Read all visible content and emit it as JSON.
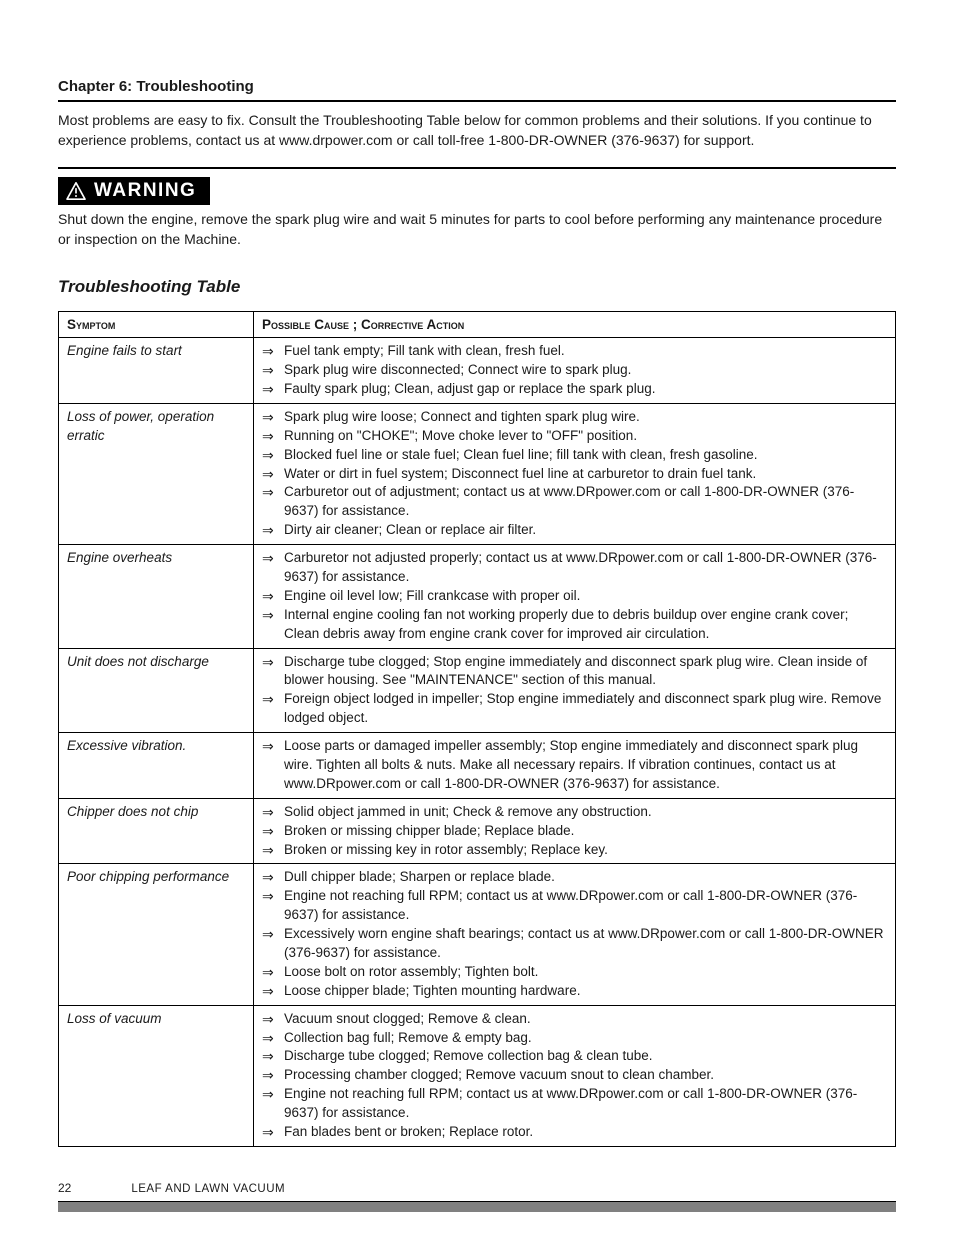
{
  "chapterTitle": "Chapter 6: Troubleshooting",
  "intro": "Most problems are easy to fix. Consult the Troubleshooting Table below for common problems and their solutions. If you continue to experience problems, contact us at www.drpower.com or call toll-free 1-800-DR-OWNER (376-9637) for support.",
  "warningLabel": "WARNING",
  "warningText": "Shut down the engine, remove the spark plug wire and wait 5 minutes for parts to cool before performing any maintenance procedure or inspection on the Machine.",
  "tableTitle": "Troubleshooting Table",
  "headers": {
    "symptom": "Symptom",
    "cause": "Possible Cause ; Corrective Action"
  },
  "rows": [
    {
      "symptom": "Engine fails to start",
      "causes": [
        "Fuel tank empty; Fill tank with clean, fresh fuel.",
        "Spark plug wire disconnected; Connect wire to spark plug.",
        "Faulty spark plug; Clean, adjust gap or replace the spark plug."
      ]
    },
    {
      "symptom": "Loss of power, operation erratic",
      "causes": [
        "Spark plug wire loose; Connect and tighten spark plug wire.",
        "Running on \"CHOKE\"; Move choke lever to \"OFF\" position.",
        "Blocked fuel line or stale fuel; Clean fuel line; fill tank with clean, fresh gasoline.",
        "Water or dirt in fuel system; Disconnect fuel line at carburetor to drain fuel tank.",
        "Carburetor out of adjustment; contact us at www.DRpower.com or call 1-800-DR-OWNER (376-9637) for assistance.",
        "Dirty air cleaner; Clean or replace air filter."
      ]
    },
    {
      "symptom": "Engine overheats",
      "causes": [
        "Carburetor not adjusted properly; contact us at www.DRpower.com or call 1-800-DR-OWNER (376-9637) for assistance.",
        "Engine oil level low; Fill crankcase with proper oil.",
        "Internal engine cooling fan not working properly due to debris buildup over engine crank cover; Clean debris away from engine crank cover for improved air circulation."
      ]
    },
    {
      "symptom": "Unit does not discharge",
      "causes": [
        "Discharge tube clogged; Stop engine immediately and disconnect spark plug wire.  Clean inside of blower housing.  See \"MAINTENANCE\" section of this manual.",
        "Foreign object lodged in impeller; Stop engine immediately and disconnect spark plug wire.  Remove lodged object."
      ]
    },
    {
      "symptom": "Excessive vibration.",
      "causes": [
        "Loose parts or damaged impeller assembly; Stop engine immediately and disconnect spark plug wire.  Tighten all bolts & nuts.  Make all necessary repairs.  If vibration continues, contact us at www.DRpower.com or call 1-800-DR-OWNER (376-9637) for assistance."
      ]
    },
    {
      "symptom": "Chipper does not chip",
      "causes": [
        "Solid object jammed in unit;  Check & remove any obstruction.",
        "Broken or missing chipper blade; Replace blade.",
        "Broken or missing key in rotor assembly; Replace key."
      ]
    },
    {
      "symptom": "Poor chipping performance",
      "causes": [
        "Dull chipper blade; Sharpen or replace blade.",
        "Engine not reaching full RPM; contact us at www.DRpower.com or call 1-800-DR-OWNER (376-9637) for assistance.",
        "Excessively worn engine shaft bearings; contact us at www.DRpower.com or call 1-800-DR-OWNER (376-9637) for assistance.",
        "Loose bolt on rotor assembly; Tighten bolt.",
        "Loose chipper blade; Tighten mounting hardware."
      ]
    },
    {
      "symptom": "Loss of vacuum",
      "causes": [
        "Vacuum snout clogged; Remove & clean.",
        "Collection bag full; Remove & empty bag.",
        "Discharge tube clogged; Remove collection bag & clean tube.",
        "Processing chamber clogged; Remove vacuum snout to clean chamber.",
        "Engine not reaching full  RPM; contact us at www.DRpower.com or call 1-800-DR-OWNER (376-9637) for assistance.",
        "Fan blades bent or broken; Replace rotor."
      ]
    }
  ],
  "footer": {
    "pageNumber": "22",
    "bookTitle": "LEAF AND LAWN VACUUM"
  },
  "style": {
    "arrowGlyph": "⇒",
    "pageWidth": 954,
    "pageHeight": 1235,
    "colors": {
      "text": "#1a1a1a",
      "rule": "#000000",
      "warningBg": "#000000",
      "warningFg": "#ffffff",
      "footerBar": "#808080",
      "background": "#ffffff"
    },
    "fonts": {
      "body": "Segoe UI / Helvetica / Arial",
      "bodySize": 14,
      "tableSize": 13.5,
      "chapterTitleSize": 15,
      "tableTitleSize": 17,
      "warningSize": 19
    },
    "columnWidths": {
      "symptom": 178
    }
  }
}
